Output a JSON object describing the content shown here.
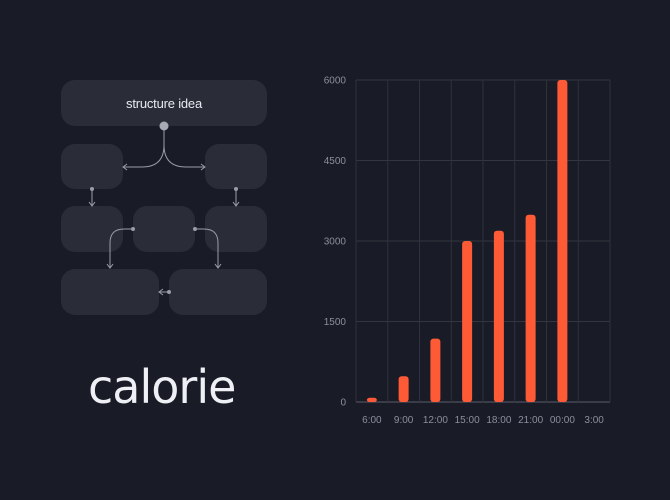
{
  "diagram": {
    "top_box_label": "structure idea"
  },
  "brand": {
    "wordmark": "calorie"
  },
  "chart_data": {
    "type": "bar",
    "categories": [
      "6:00",
      "9:00",
      "12:00",
      "15:00",
      "18:00",
      "21:00",
      "00:00",
      "3:00"
    ],
    "values": [
      80,
      480,
      1180,
      3000,
      3190,
      3490,
      6000,
      null
    ],
    "ylim": [
      0,
      6000
    ],
    "yticks": [
      0,
      1500,
      3000,
      4500,
      6000
    ],
    "ytick_labels": [
      "0",
      "1500",
      "3000",
      "4500",
      "6000"
    ],
    "grid": true,
    "bar_color": "#ff5a36"
  }
}
